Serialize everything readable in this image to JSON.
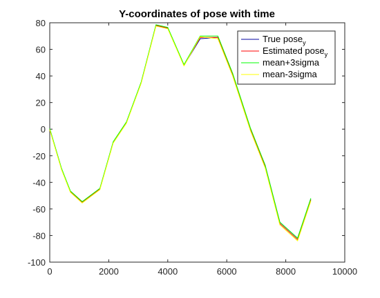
{
  "chart_data": {
    "type": "line",
    "title": "Y-coordinates of pose with time",
    "xlabel": "",
    "ylabel": "",
    "xlim": [
      0,
      10000
    ],
    "ylim": [
      -100,
      80
    ],
    "xticks": [
      0,
      2000,
      4000,
      6000,
      8000,
      10000
    ],
    "yticks": [
      -100,
      -80,
      -60,
      -40,
      -20,
      0,
      20,
      40,
      60,
      80
    ],
    "xtick_labels": [
      "0",
      "2000",
      "4000",
      "6000",
      "8000",
      "10000"
    ],
    "ytick_labels": [
      "-100",
      "-80",
      "-60",
      "-40",
      "-20",
      "0",
      "20",
      "40",
      "60",
      "80"
    ],
    "grid": false,
    "legend_position": "top-right",
    "legend": [
      {
        "text": "True pose",
        "subscript": "y",
        "color": "#0000a0"
      },
      {
        "text": "Estimated pose",
        "subscript": "y",
        "color": "#ff0000"
      },
      {
        "text": "mean+3sigma",
        "subscript": "",
        "color": "#00ff00"
      },
      {
        "text": "mean-3sigma",
        "subscript": "",
        "color": "#ffff00"
      }
    ],
    "series": [
      {
        "name": "True pose_y",
        "color": "#0000a0",
        "x": [
          0,
          400,
          700,
          1100,
          1700,
          2150,
          2600,
          3100,
          3600,
          4000,
          4550,
          5100,
          5700,
          6200,
          6800,
          7300,
          7800,
          8400,
          8850
        ],
        "y": [
          0,
          -30,
          -47,
          -55,
          -45,
          -10,
          5,
          35,
          78,
          76,
          48,
          68,
          69,
          41,
          0,
          -27,
          -70,
          -82,
          -53
        ]
      },
      {
        "name": "Estimated pose_y",
        "color": "#ff0000",
        "x": [
          0,
          400,
          700,
          1100,
          1700,
          2150,
          2600,
          3100,
          3600,
          4000,
          4550,
          5100,
          5700,
          6200,
          6800,
          7300,
          7800,
          8400,
          8850
        ],
        "y": [
          0,
          -30,
          -47,
          -55,
          -45,
          -10,
          5,
          35,
          78,
          76,
          48,
          69,
          69,
          41,
          0,
          -28,
          -71,
          -83,
          -53
        ]
      },
      {
        "name": "mean+3sigma",
        "color": "#00ff00",
        "x": [
          0,
          400,
          700,
          1100,
          1700,
          2150,
          2600,
          3100,
          3600,
          4000,
          4550,
          5100,
          5700,
          6200,
          6800,
          7300,
          7800,
          8400,
          8850
        ],
        "y": [
          0.5,
          -29.5,
          -46.5,
          -54.5,
          -44.5,
          -9.5,
          5.5,
          35.5,
          78.5,
          76.5,
          48.5,
          70,
          70,
          42,
          1,
          -27,
          -70,
          -82,
          -52
        ]
      },
      {
        "name": "mean-3sigma",
        "color": "#ffff00",
        "x": [
          0,
          400,
          700,
          1100,
          1700,
          2150,
          2600,
          3100,
          3600,
          4000,
          4550,
          5100,
          5700,
          6200,
          6800,
          7300,
          7800,
          8400,
          8850
        ],
        "y": [
          -0.5,
          -30.5,
          -47.5,
          -55.5,
          -45.5,
          -10.5,
          4.5,
          34.5,
          77.5,
          75.5,
          47.5,
          69.5,
          68,
          40,
          -1,
          -29,
          -72,
          -84,
          -54
        ]
      }
    ]
  }
}
